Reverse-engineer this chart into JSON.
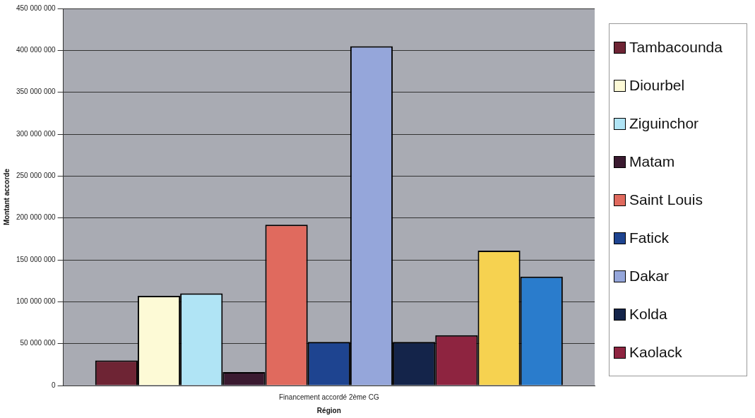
{
  "chart_data": {
    "type": "bar",
    "categories": [
      "Financement accordé 2ème CG"
    ],
    "xlabel": "Région",
    "ylabel": "Montant accorde",
    "ylim": [
      0,
      450000000
    ],
    "yticks": [
      0,
      50000000,
      100000000,
      150000000,
      200000000,
      250000000,
      300000000,
      350000000,
      400000000,
      450000000
    ],
    "grid": "y",
    "legend": "right",
    "series": [
      {
        "name": "Tambacounda",
        "color": "#6e2434",
        "values": [
          30000000
        ]
      },
      {
        "name": "Diourbel",
        "color": "#fdfad6",
        "values": [
          107000000
        ]
      },
      {
        "name": "Ziguinchor",
        "color": "#b0e4f5",
        "values": [
          110000000
        ]
      },
      {
        "name": "Matam",
        "color": "#3a1a30",
        "values": [
          16000000
        ]
      },
      {
        "name": "Saint Louis",
        "color": "#e06a5e",
        "values": [
          192000000
        ]
      },
      {
        "name": "Fatick",
        "color": "#1e4490",
        "values": [
          52000000
        ]
      },
      {
        "name": "Dakar",
        "color": "#95a6da",
        "values": [
          405000000
        ]
      },
      {
        "name": "Kolda",
        "color": "#14244a",
        "values": [
          52000000
        ]
      },
      {
        "name": "Kaolack",
        "color": "#8e2440",
        "values": [
          60000000
        ]
      },
      {
        "color": "#f6d250",
        "values": [
          161000000
        ]
      },
      {
        "color": "#2a7ccc",
        "values": [
          130000000
        ]
      }
    ]
  }
}
